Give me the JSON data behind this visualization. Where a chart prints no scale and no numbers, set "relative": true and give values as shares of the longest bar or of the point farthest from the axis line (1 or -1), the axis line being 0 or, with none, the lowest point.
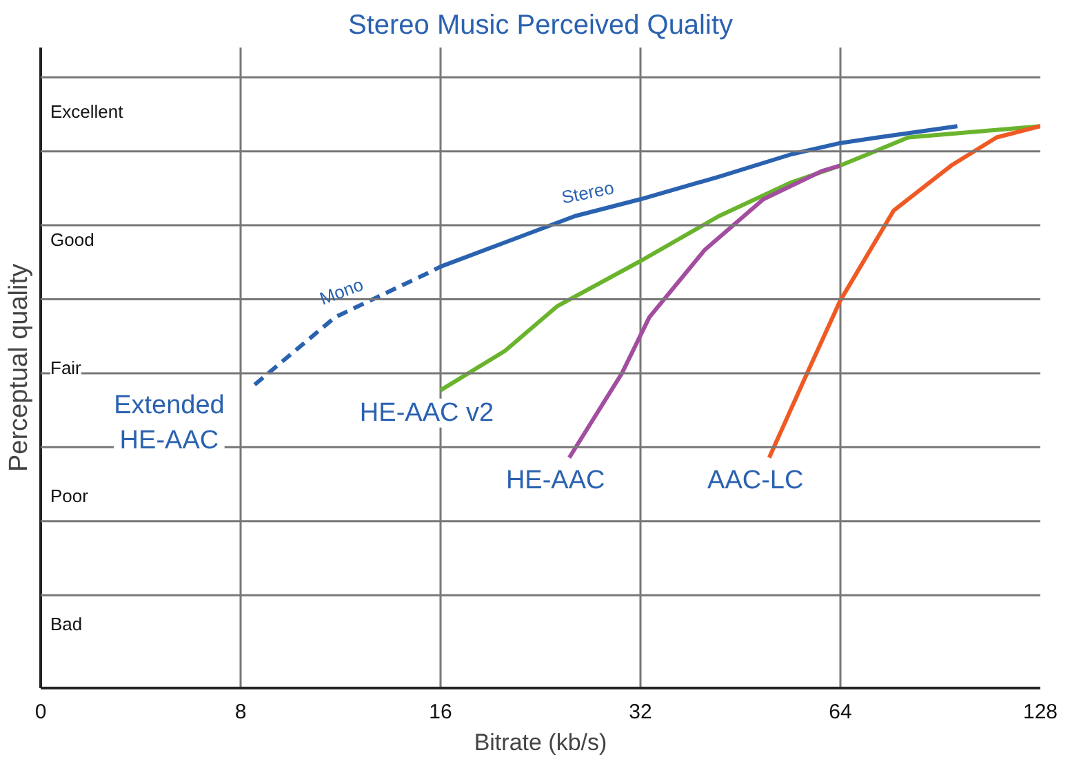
{
  "chart_data": {
    "type": "line",
    "title": "Stereo Music Perceived Quality",
    "xlabel": "Bitrate (kb/s)",
    "ylabel": "Perceptual quality",
    "log": "x",
    "xlim": [
      0,
      128
    ],
    "xticks": [
      0,
      8,
      16,
      32,
      64,
      128
    ],
    "relative": true,
    "grid": true,
    "series": [
      {
        "name": "Mono",
        "color": "#2a62b0",
        "line_style": "dashed",
        "x": [
          8.4,
          11.1,
          15.4,
          16
        ],
        "values": [
          0.54,
          0.66,
          0.74,
          0.75
        ]
      },
      {
        "name": "Stereo",
        "color": "#2a62b0",
        "line_style": "solid",
        "x": [
          16,
          25.5,
          32,
          42,
          54,
          64,
          73,
          96
        ],
        "values": [
          0.75,
          0.84,
          0.87,
          0.91,
          0.95,
          0.97,
          0.98,
          1.0
        ]
      },
      {
        "name": "HE-AAC v2",
        "color": "#6ab42d",
        "line_style": "solid",
        "x": [
          16,
          20,
          24,
          32,
          42,
          54,
          64,
          81,
          128
        ],
        "values": [
          0.53,
          0.6,
          0.68,
          0.76,
          0.84,
          0.9,
          0.93,
          0.98,
          1.0
        ]
      },
      {
        "name": "HE-AAC",
        "color": "#a24d9f",
        "line_style": "solid",
        "x": [
          25,
          30,
          33,
          40,
          49,
          60,
          64
        ],
        "values": [
          0.41,
          0.56,
          0.66,
          0.78,
          0.87,
          0.92,
          0.93
        ]
      },
      {
        "name": "AAC-LC",
        "color": "#ef5a24",
        "line_style": "solid",
        "x": [
          50,
          57,
          64,
          77,
          94,
          110,
          128
        ],
        "values": [
          0.41,
          0.56,
          0.69,
          0.85,
          0.93,
          0.98,
          1.0
        ]
      }
    ],
    "annotations": [
      "Excellent",
      "Good",
      "Fair",
      "Poor",
      "Bad",
      "Extended HE-AAC"
    ]
  }
}
